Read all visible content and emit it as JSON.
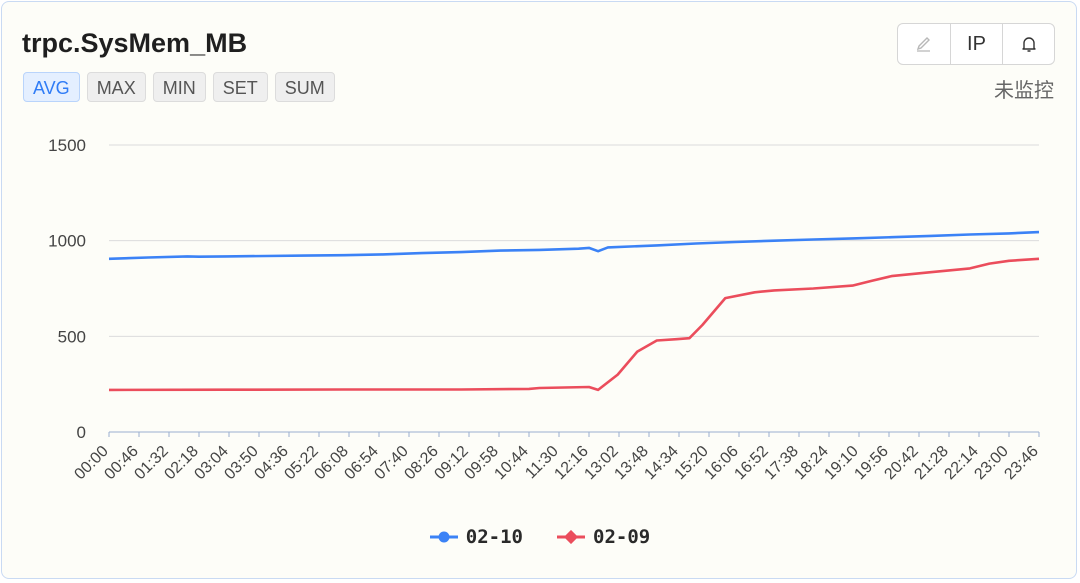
{
  "title": "trpc.SysMem_MB",
  "tabs": [
    "AVG",
    "MAX",
    "MIN",
    "SET",
    "SUM"
  ],
  "active_tab": "AVG",
  "toolbar": {
    "edit_icon": "pencil-icon",
    "ip_label": "IP",
    "alert_icon": "bell-icon"
  },
  "monitor_status": "未监控",
  "colors": {
    "accent": "#2f7cf6",
    "series_blue": "#3b82f6",
    "series_red": "#eb4d5c"
  },
  "chart_data": {
    "type": "line",
    "title": "trpc.SysMem_MB",
    "xlabel": "",
    "ylabel": "",
    "ylim": [
      0,
      1500
    ],
    "yticks": [
      "0",
      "500",
      "1000",
      "1500"
    ],
    "xticks": [
      "00:00",
      "00:46",
      "01:32",
      "02:18",
      "03:04",
      "03:50",
      "04:36",
      "05:22",
      "06:08",
      "06:54",
      "07:40",
      "08:26",
      "09:12",
      "09:58",
      "10:44",
      "11:30",
      "12:16",
      "13:02",
      "13:48",
      "14:34",
      "15:20",
      "16:06",
      "16:52",
      "17:38",
      "18:24",
      "19:10",
      "19:56",
      "20:42",
      "21:28",
      "22:14",
      "23:00",
      "23:46"
    ],
    "grid": true,
    "legend_position": "bottom",
    "series": [
      {
        "name": "02-10",
        "color": "#3b82f6",
        "points": [
          [
            "00:00",
            905
          ],
          [
            "01:00",
            912
          ],
          [
            "02:00",
            918
          ],
          [
            "02:18",
            916
          ],
          [
            "03:00",
            918
          ],
          [
            "04:00",
            920
          ],
          [
            "05:00",
            922
          ],
          [
            "06:00",
            924
          ],
          [
            "07:00",
            928
          ],
          [
            "08:00",
            935
          ],
          [
            "09:00",
            940
          ],
          [
            "10:00",
            948
          ],
          [
            "11:00",
            952
          ],
          [
            "12:00",
            958
          ],
          [
            "12:16",
            962
          ],
          [
            "12:30",
            945
          ],
          [
            "12:45",
            965
          ],
          [
            "14:00",
            975
          ],
          [
            "15:00",
            985
          ],
          [
            "16:00",
            993
          ],
          [
            "17:00",
            1000
          ],
          [
            "18:00",
            1006
          ],
          [
            "19:00",
            1012
          ],
          [
            "20:00",
            1018
          ],
          [
            "21:00",
            1025
          ],
          [
            "22:00",
            1032
          ],
          [
            "23:00",
            1038
          ],
          [
            "24:00",
            1045
          ]
        ]
      },
      {
        "name": "02-09",
        "color": "#eb4d5c",
        "points": [
          [
            "00:00",
            220
          ],
          [
            "03:00",
            221
          ],
          [
            "06:00",
            222
          ],
          [
            "09:00",
            222
          ],
          [
            "10:44",
            225
          ],
          [
            "11:00",
            230
          ],
          [
            "12:16",
            235
          ],
          [
            "12:30",
            220
          ],
          [
            "13:00",
            300
          ],
          [
            "13:30",
            420
          ],
          [
            "14:00",
            478
          ],
          [
            "14:30",
            485
          ],
          [
            "14:50",
            490
          ],
          [
            "15:10",
            560
          ],
          [
            "15:45",
            700
          ],
          [
            "16:30",
            730
          ],
          [
            "17:00",
            740
          ],
          [
            "18:00",
            750
          ],
          [
            "19:00",
            765
          ],
          [
            "19:30",
            790
          ],
          [
            "20:00",
            815
          ],
          [
            "21:00",
            835
          ],
          [
            "22:00",
            855
          ],
          [
            "22:30",
            880
          ],
          [
            "23:00",
            895
          ],
          [
            "24:00",
            905
          ]
        ]
      }
    ]
  }
}
